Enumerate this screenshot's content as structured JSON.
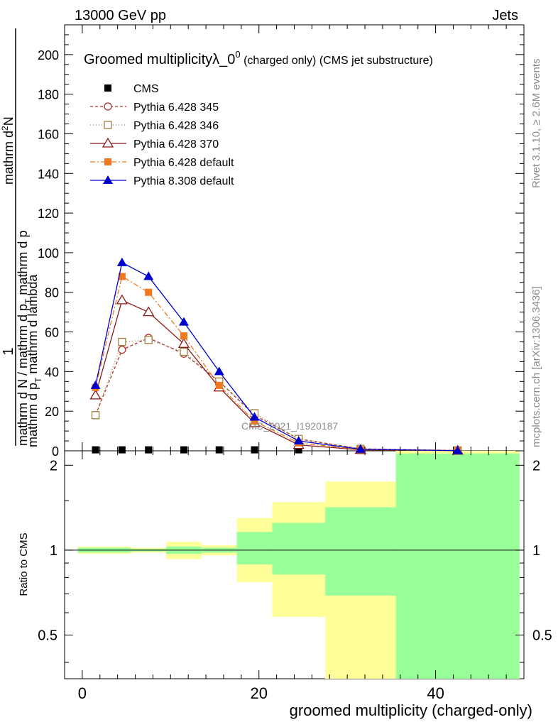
{
  "header": {
    "left": "13000 GeV pp",
    "right": "Jets"
  },
  "side": {
    "rivet": "Rivet 3.1.10, ≥ 2.6M events",
    "mcplots": "mcplots.cern.ch [arXiv:1306.3436]"
  },
  "chart_data": [
    {
      "type": "line",
      "title_main": "Groomed multiplicityλ_0",
      "title_sup": "0",
      "title_rest": " (charged only) (CMS jet substructure)",
      "watermark": "CMS_2021_I1920187",
      "ylabel_top": "1",
      "ylabel_frac_num": "mathrm d",
      "ylabel_frac_num_sup": "2",
      "ylabel_frac_num_tail": "N",
      "ylabel_denominator": "mathrm d N / mathrm d p",
      "ylabel_denominator_sub": "T",
      "ylabel_numerator_tail": "mathrm d p",
      "ylabel_numerator_sub": "T",
      "ylabel_numerator_end": " mathrm d lambda",
      "xlim": [
        -2,
        50
      ],
      "ylim": [
        0,
        215
      ],
      "yticks": [
        0,
        20,
        40,
        60,
        80,
        100,
        120,
        140,
        160,
        180,
        200
      ],
      "legend_position": "top-left",
      "series": [
        {
          "name": "CMS",
          "color": "#000000",
          "marker": "square-filled",
          "dash": "none",
          "x": [
            1.5,
            4.5,
            7.5,
            11.5,
            15.5,
            19.5,
            24.5,
            31.5,
            42.5
          ],
          "y": [
            0.5,
            0.5,
            0.5,
            0.5,
            0.5,
            0.5,
            0.5,
            0.2,
            0.1
          ]
        },
        {
          "name": "Pythia 6.428 345",
          "color": "#b03030",
          "marker": "circle-open",
          "dash": "4,3",
          "x": [
            1.5,
            4.5,
            7.5,
            11.5,
            15.5,
            19.5,
            24.5,
            31.5,
            42.5
          ],
          "y": [
            18,
            51,
            57,
            49,
            35,
            18,
            6,
            1,
            0.2
          ]
        },
        {
          "name": "Pythia 6.428 346",
          "color": "#a08040",
          "marker": "square-open",
          "dash": "1,3",
          "x": [
            1.5,
            4.5,
            7.5,
            11.5,
            15.5,
            19.5,
            24.5,
            31.5,
            42.5
          ],
          "y": [
            18,
            55,
            56,
            50,
            35,
            19,
            6,
            1,
            0.2
          ]
        },
        {
          "name": "Pythia 6.428 370",
          "color": "#8b1a1a",
          "marker": "triangle-open",
          "dash": "none",
          "x": [
            1.5,
            4.5,
            7.5,
            11.5,
            15.5,
            19.5,
            24.5,
            31.5,
            42.5
          ],
          "y": [
            28,
            76,
            70,
            54,
            32,
            14,
            3,
            0.5,
            0.1
          ]
        },
        {
          "name": "Pythia 6.428 default",
          "color": "#f07820",
          "marker": "square-filled",
          "dash": "7,3,2,3",
          "x": [
            1.5,
            4.5,
            7.5,
            11.5,
            15.5,
            19.5,
            24.5,
            31.5,
            42.5
          ],
          "y": [
            32,
            88,
            80,
            58,
            33,
            15,
            4,
            0.6,
            0.1
          ]
        },
        {
          "name": "Pythia 8.308 default",
          "color": "#0000cc",
          "marker": "triangle-filled",
          "dash": "none",
          "x": [
            1.5,
            4.5,
            7.5,
            11.5,
            15.5,
            19.5,
            24.5,
            31.5,
            42.5
          ],
          "y": [
            33,
            95,
            88,
            65,
            40,
            17,
            5,
            0.8,
            0.1
          ]
        }
      ]
    },
    {
      "type": "area",
      "ylabel": "Ratio to CMS",
      "xlabel": "groomed multiplicity (charged-only)",
      "xlim": [
        -2,
        50
      ],
      "ylim": [
        0.35,
        2.25
      ],
      "yticks": [
        0.5,
        1,
        2
      ],
      "xticks": [
        0,
        20,
        40
      ],
      "reference": 1,
      "bands": [
        {
          "x0": -0.5,
          "x1": 3.5,
          "yellow": [
            0.97,
            1.03
          ],
          "green": [
            0.98,
            1.02
          ]
        },
        {
          "x0": 3.5,
          "x1": 5.5,
          "yellow": [
            0.97,
            1.03
          ],
          "green": [
            0.98,
            1.02
          ]
        },
        {
          "x0": 5.5,
          "x1": 9.5,
          "yellow": [
            0.98,
            1.02
          ],
          "green": [
            0.99,
            1.01
          ]
        },
        {
          "x0": 9.5,
          "x1": 13.5,
          "yellow": [
            0.93,
            1.07
          ],
          "green": [
            0.97,
            1.03
          ]
        },
        {
          "x0": 13.5,
          "x1": 17.5,
          "yellow": [
            0.96,
            1.04
          ],
          "green": [
            0.98,
            1.02
          ]
        },
        {
          "x0": 17.5,
          "x1": 21.5,
          "yellow": [
            0.77,
            1.3
          ],
          "green": [
            0.89,
            1.16
          ]
        },
        {
          "x0": 21.5,
          "x1": 27.5,
          "yellow": [
            0.58,
            1.48
          ],
          "green": [
            0.82,
            1.25
          ]
        },
        {
          "x0": 27.5,
          "x1": 35.5,
          "yellow": [
            0.3,
            1.75
          ],
          "green": [
            0.69,
            1.42
          ]
        },
        {
          "x0": 35.5,
          "x1": 49.5,
          "yellow": [
            0.3,
            2.4
          ],
          "green": [
            0.3,
            2.2
          ]
        }
      ]
    }
  ]
}
